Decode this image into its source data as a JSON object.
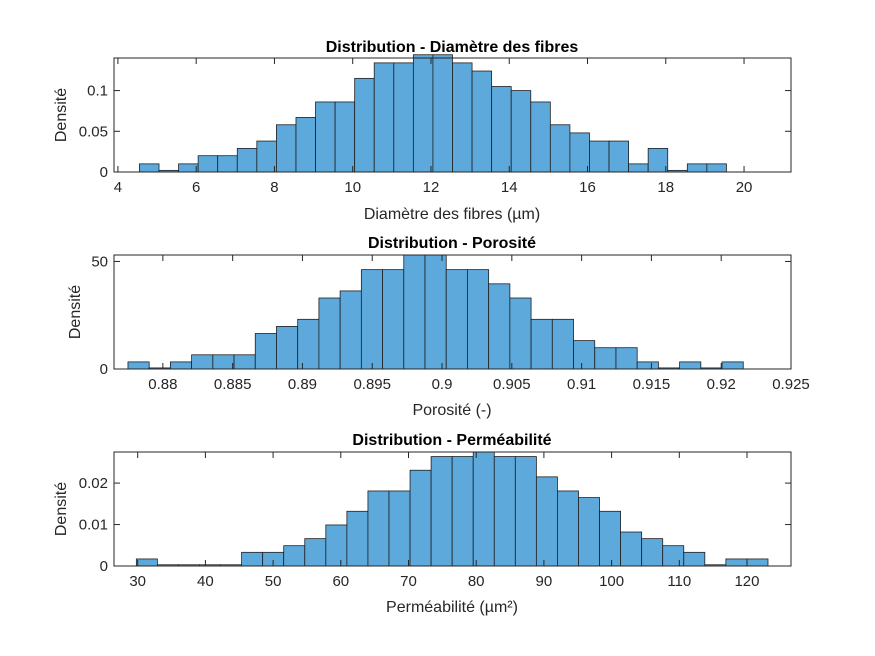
{
  "chart_data": [
    {
      "type": "bar",
      "title": "Distribution - Diamètre des fibres",
      "xlabel": "Diamètre des fibres (µm)",
      "ylabel": "Densité",
      "xlim": [
        3.9,
        21.2
      ],
      "ylim": [
        0,
        0.14
      ],
      "xticks": [
        4,
        6,
        8,
        10,
        12,
        14,
        16,
        18,
        20
      ],
      "xtick_labels": [
        "4",
        "6",
        "8",
        "10",
        "12",
        "14",
        "16",
        "18",
        "20"
      ],
      "yticks": [
        0,
        0.05,
        0.1
      ],
      "ytick_labels": [
        "0",
        "0.05",
        "0.1"
      ],
      "bin_start": 4.55,
      "bin_width": 0.5,
      "values": [
        0.01,
        0.002,
        0.01,
        0.02,
        0.02,
        0.029,
        0.038,
        0.058,
        0.067,
        0.086,
        0.086,
        0.115,
        0.134,
        0.134,
        0.144,
        0.144,
        0.134,
        0.124,
        0.105,
        0.1,
        0.086,
        0.058,
        0.048,
        0.038,
        0.038,
        0.01,
        0.029,
        0.002,
        0.01,
        0.01
      ],
      "bar_color": "#5EA9DC",
      "grid": false
    },
    {
      "type": "bar",
      "title": "Distribution - Porosité",
      "xlabel": "Porosité (-)",
      "ylabel": "Densité",
      "xlim": [
        0.8765,
        0.925
      ],
      "ylim": [
        0,
        53
      ],
      "xticks": [
        0.88,
        0.885,
        0.89,
        0.895,
        0.9,
        0.905,
        0.91,
        0.915,
        0.92,
        0.925
      ],
      "xtick_labels": [
        "0.88",
        "0.885",
        "0.89",
        "0.895",
        "0.9",
        "0.905",
        "0.91",
        "0.915",
        "0.92",
        "0.925"
      ],
      "yticks": [
        0,
        50
      ],
      "ytick_labels": [
        "0",
        "50"
      ],
      "bin_start": 0.8775,
      "bin_width": 0.00152,
      "values": [
        3.3,
        0.5,
        3.3,
        6.6,
        6.6,
        6.6,
        16.5,
        19.8,
        23.1,
        33,
        36.3,
        46.2,
        46.2,
        53,
        53,
        46.2,
        46.2,
        39.6,
        33,
        23.1,
        23.1,
        13.2,
        9.9,
        9.9,
        3.3,
        0.5,
        3.3,
        0.5,
        3.3
      ],
      "bar_color": "#5EA9DC",
      "grid": false
    },
    {
      "type": "bar",
      "title": "Distribution - Perméabilité",
      "xlabel": "Perméabilité (µm²)",
      "ylabel": "Densité",
      "xlim": [
        26.5,
        126.5
      ],
      "ylim": [
        0,
        0.0275
      ],
      "xticks": [
        30,
        40,
        50,
        60,
        70,
        80,
        90,
        100,
        110,
        120
      ],
      "xtick_labels": [
        "30",
        "40",
        "50",
        "60",
        "70",
        "80",
        "90",
        "100",
        "110",
        "120"
      ],
      "yticks": [
        0,
        0.01,
        0.02
      ],
      "ytick_labels": [
        "0",
        "0.01",
        "0.02"
      ],
      "bin_start": 29.8,
      "bin_width": 3.11,
      "values": [
        0.0017,
        0.0003,
        0.0003,
        0.0003,
        0.0003,
        0.0033,
        0.0033,
        0.0049,
        0.0066,
        0.0099,
        0.0132,
        0.0181,
        0.0181,
        0.0231,
        0.0264,
        0.0264,
        0.0275,
        0.0264,
        0.0264,
        0.0215,
        0.0181,
        0.0165,
        0.0132,
        0.0082,
        0.0066,
        0.0049,
        0.0033,
        0.0003,
        0.0017,
        0.0017
      ],
      "bar_color": "#5EA9DC",
      "grid": false
    }
  ]
}
